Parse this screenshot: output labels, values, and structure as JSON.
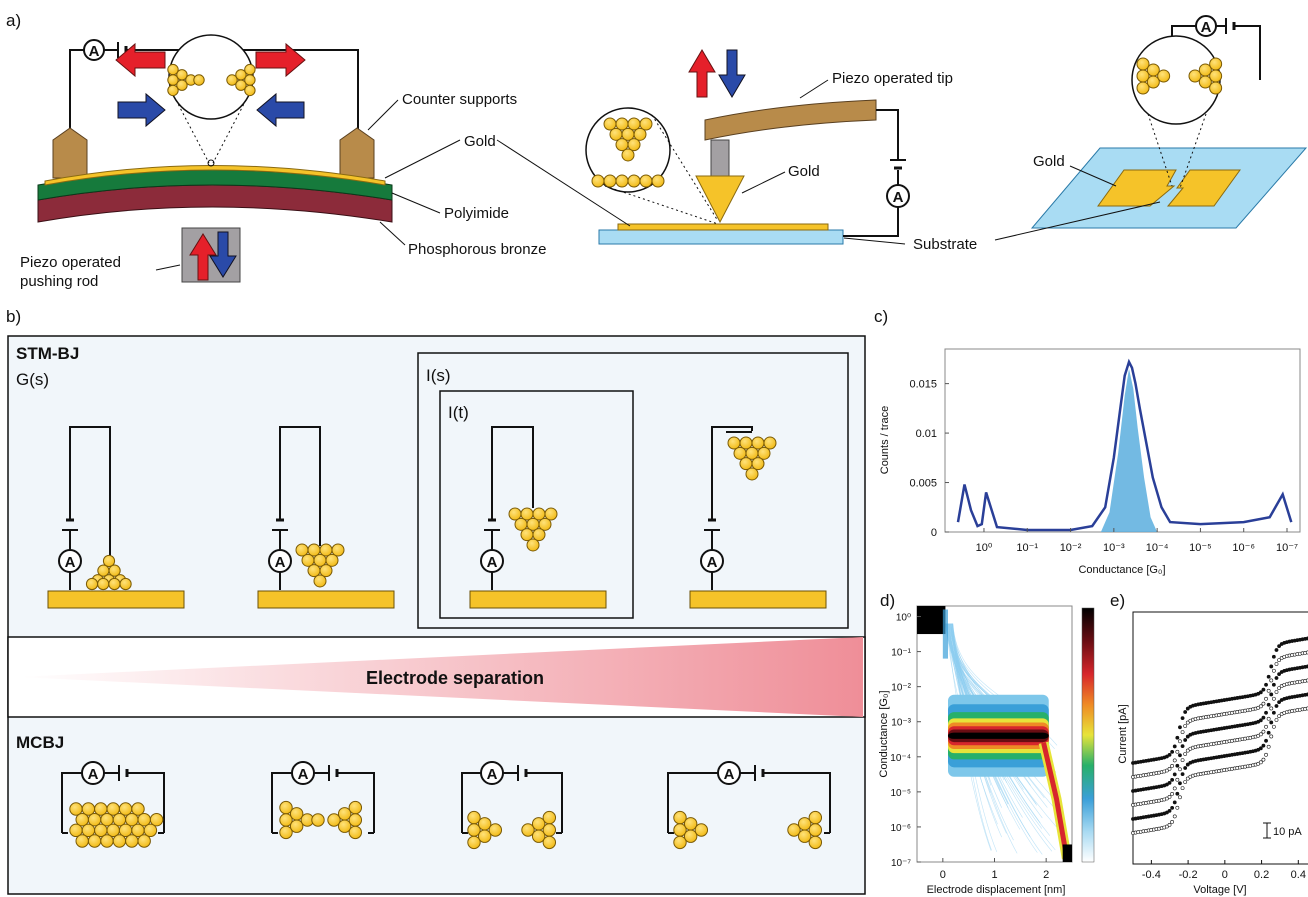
{
  "panel_a": {
    "label": "a)",
    "mcbj_setup": {
      "counter_supports": "Counter supports",
      "gold": "Gold",
      "polyimide": "Polyimide",
      "phosphorous_bronze": "Phosphorous bronze",
      "pushing_rod_line1": "Piezo operated",
      "pushing_rod_line2": "pushing rod",
      "ammeter": "A"
    },
    "stm_setup": {
      "piezo_tip": "Piezo operated tip",
      "gold": "Gold",
      "substrate": "Substrate",
      "ammeter": "A"
    },
    "lithographic_setup": {
      "gold": "Gold",
      "ammeter": "A"
    },
    "colors": {
      "pull": "#e5202a",
      "push": "#2a4aa8",
      "gold": "#f5c329",
      "polyimide": "#167a3c",
      "bronze": "#8c2b3a",
      "substrate": "#a9dcf3",
      "support": "#b88b4a"
    }
  },
  "panel_b": {
    "label": "b)",
    "stm_title": "STM-BJ",
    "gs_label": "G(s)",
    "is_label": "I(s)",
    "it_label": "I(t)",
    "separation_label": "Electrode separation",
    "mcbj_title": "MCBJ",
    "ammeter": "A"
  },
  "panel_c": {
    "label": "c)",
    "chart_data": {
      "type": "area",
      "xlabel": "Conductance [G₀]",
      "ylabel": "Counts / trace",
      "x_scale": "log, reversed",
      "x_ticks": [
        "10⁰",
        "10⁻¹",
        "10⁻²",
        "10⁻³",
        "10⁻⁴",
        "10⁻⁵",
        "10⁻⁶",
        "10⁻⁷"
      ],
      "y_ticks": [
        "0",
        "0.005",
        "0.01",
        "0.015"
      ],
      "ylim": [
        0,
        0.0185
      ],
      "series": [
        {
          "name": "",
          "x_log10": [
            0.6,
            0.45,
            0.3,
            0.15,
            0.05,
            -0.05,
            -0.3,
            -1,
            -2,
            -2.5,
            -2.8,
            -3,
            -3.15,
            -3.25,
            -3.35,
            -3.42,
            -3.5,
            -3.6,
            -3.75,
            -3.9,
            -4.1,
            -4.3,
            -5,
            -6,
            -6.6,
            -6.9,
            -7.1
          ],
          "y": [
            0.001,
            0.0048,
            0.0022,
            0.0006,
            0.0008,
            0.004,
            0.0005,
            0.0002,
            0.0002,
            0.0006,
            0.0025,
            0.0075,
            0.0125,
            0.0158,
            0.0172,
            0.0166,
            0.015,
            0.0125,
            0.009,
            0.0055,
            0.0025,
            0.001,
            0.0008,
            0.001,
            0.0015,
            0.0038,
            0.001
          ]
        },
        {
          "name": "",
          "x_log10": [
            -2.7,
            -2.9,
            -3.1,
            -3.25,
            -3.35,
            -3.45,
            -3.55,
            -3.7,
            -3.85,
            -4.0
          ],
          "y": [
            0.0,
            0.002,
            0.008,
            0.0138,
            0.0165,
            0.0145,
            0.0105,
            0.0055,
            0.0015,
            0.0
          ]
        }
      ]
    }
  },
  "panel_d": {
    "label": "d)",
    "chart_data": {
      "type": "heatmap",
      "xlabel": "Electrode displacement [nm]",
      "ylabel": "Conductance [G₀]",
      "x_ticks": [
        "0",
        "1",
        "2"
      ],
      "y_ticks": [
        "10⁰",
        "10⁻¹",
        "10⁻²",
        "10⁻³",
        "10⁻⁴",
        "10⁻⁵",
        "10⁻⁶",
        "10⁻⁷"
      ],
      "xlim": [
        -0.5,
        2.5
      ],
      "ylim_log10": [
        -7,
        0.3
      ],
      "plateau_log10": -3.4,
      "colormap": [
        "#ffffff",
        "#7ec7ea",
        "#3a9fd8",
        "#27b06a",
        "#e7e43a",
        "#ef8a25",
        "#d7262c",
        "#6a0d13",
        "#000000"
      ]
    }
  },
  "panel_e": {
    "label": "e)",
    "chart_data": {
      "type": "scatter",
      "xlabel": "Voltage [V]",
      "ylabel": "Current [pA]",
      "x_ticks": [
        "-0.4",
        "-0.2",
        "0",
        "0.2",
        "0.4"
      ],
      "xlim": [
        -0.5,
        0.48
      ],
      "scale_bar": "10 pA",
      "n_curves": 6
    }
  }
}
